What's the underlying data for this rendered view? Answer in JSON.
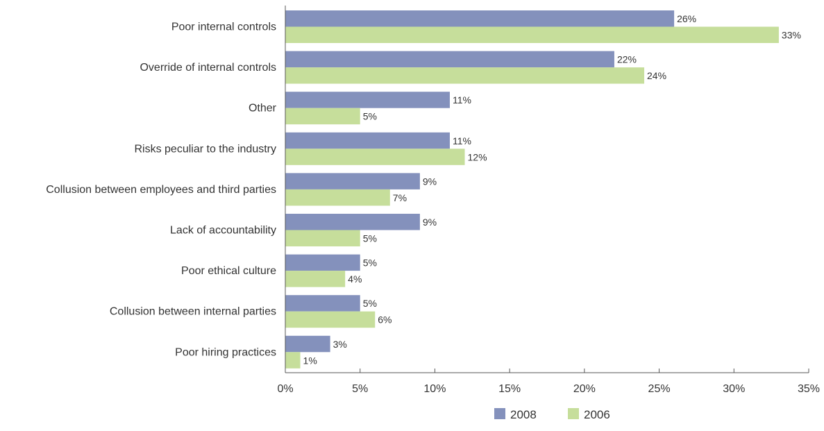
{
  "chart_data": {
    "type": "bar",
    "orientation": "horizontal",
    "categories": [
      "Poor internal controls",
      "Override of internal controls",
      "Other",
      "Risks peculiar to the industry",
      "Collusion between employees and third parties",
      "Lack of accountability",
      "Poor ethical culture",
      "Collusion between internal parties",
      "Poor hiring practices"
    ],
    "series": [
      {
        "name": "2008",
        "color": "#8491BC",
        "values": [
          26,
          22,
          11,
          11,
          9,
          9,
          5,
          5,
          3
        ],
        "labels": [
          "26%",
          "22%",
          "11%",
          "11%",
          "9%",
          "9%",
          "5%",
          "5%",
          "3%"
        ]
      },
      {
        "name": "2006",
        "color": "#C6DE9B",
        "values": [
          33,
          24,
          5,
          12,
          7,
          5,
          4,
          6,
          1
        ],
        "labels": [
          "33%",
          "24%",
          "5%",
          "12%",
          "7%",
          "5%",
          "4%",
          "6%",
          "1%"
        ]
      }
    ],
    "xlim": [
      0,
      35
    ],
    "xticks": [
      0,
      5,
      10,
      15,
      20,
      25,
      30,
      35
    ],
    "xtick_labels": [
      "0%",
      "5%",
      "10%",
      "15%",
      "20%",
      "25%",
      "30%",
      "35%"
    ],
    "grid": false,
    "legend_position": "bottom-center",
    "title": "",
    "xlabel": "",
    "ylabel": ""
  }
}
